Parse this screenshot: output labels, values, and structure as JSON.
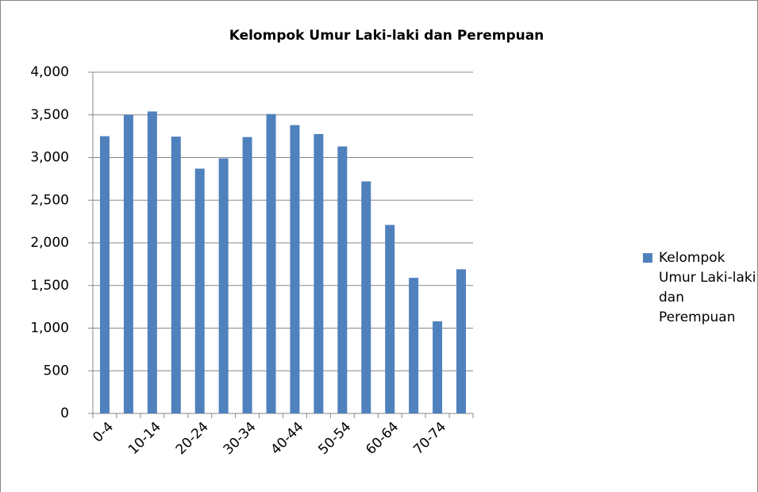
{
  "chart_data": {
    "type": "bar",
    "title": "Kelompok Umur Laki-laki dan Perempuan",
    "categories": [
      "0-4",
      null,
      "10-14",
      null,
      "20-24",
      null,
      "30-34",
      null,
      "40-44",
      null,
      "50-54",
      null,
      "60-64",
      null,
      "70-74",
      null
    ],
    "series": [
      {
        "name": "Kelompok Umur Laki-laki dan Perempuan",
        "color": "#4f81bd",
        "values": [
          3250,
          3500,
          3540,
          3245,
          2870,
          2990,
          3240,
          3510,
          3380,
          3275,
          3130,
          2720,
          2210,
          1590,
          1080,
          1690
        ]
      }
    ],
    "ylim": [
      0,
      4000
    ],
    "yticks": [
      0,
      500,
      {
        "value": 1000,
        "label": "1,000"
      },
      {
        "value": 1500,
        "label": "1,500"
      },
      {
        "value": 2000,
        "label": "2,000"
      },
      {
        "value": 2500,
        "label": "2,500"
      },
      {
        "value": 3000,
        "label": "3,000"
      },
      {
        "value": 3500,
        "label": "3,500"
      },
      {
        "value": 4000,
        "label": "4,000"
      }
    ],
    "grid": true,
    "legend": "right"
  }
}
